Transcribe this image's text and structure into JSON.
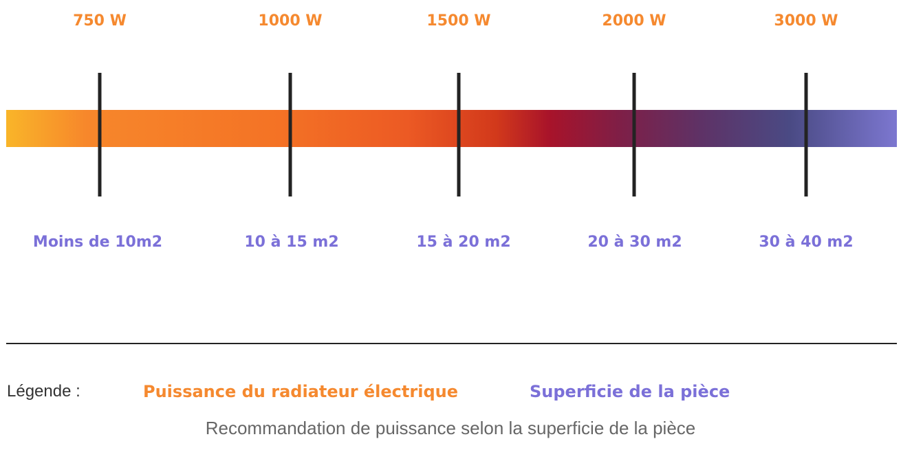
{
  "steps": [
    {
      "power": "750 W",
      "area": "Moins de 10m2"
    },
    {
      "power": "1000 W",
      "area": "10 à 15 m2"
    },
    {
      "power": "1500 W",
      "area": "15 à 20 m2"
    },
    {
      "power": "2000 W",
      "area": "20 à 30 m2"
    },
    {
      "power": "3000 W",
      "area": "30 à 40 m2"
    }
  ],
  "legend": {
    "title": "Légende :",
    "power_label": "Puissance du radiateur électrique",
    "area_label": "Superficie de la pièce"
  },
  "caption": "Recommandation de puissance selon la superficie de la pièce",
  "colors": {
    "power": "#f5892f",
    "area": "#7b70d8",
    "tick": "#232323",
    "gradient": [
      "#f9b529",
      "#f47325",
      "#d2391b",
      "#a8132a",
      "#5e3266",
      "#4a4a84",
      "#7c77d0"
    ]
  }
}
